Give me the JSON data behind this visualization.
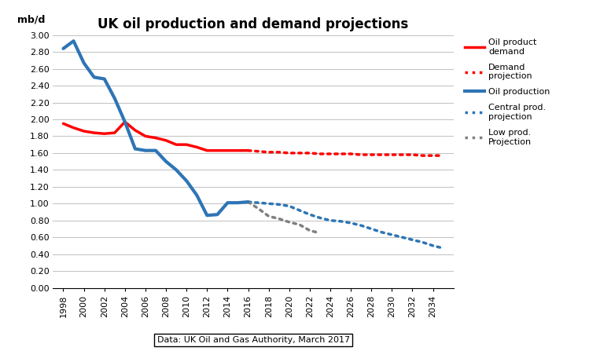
{
  "title": "UK oil production and demand projections",
  "ylabel": "mb/d",
  "source_text": "Data: UK Oil and Gas Authority, March 2017",
  "ylim": [
    0.0,
    3.0
  ],
  "yticks": [
    0.0,
    0.2,
    0.4,
    0.6,
    0.8,
    1.0,
    1.2,
    1.4,
    1.6,
    1.8,
    2.0,
    2.2,
    2.4,
    2.6,
    2.8,
    3.0
  ],
  "oil_demand_years": [
    1998,
    1999,
    2000,
    2001,
    2002,
    2003,
    2004,
    2005,
    2006,
    2007,
    2008,
    2009,
    2010,
    2011,
    2012,
    2013,
    2014,
    2015,
    2016
  ],
  "oil_demand_values": [
    1.95,
    1.9,
    1.86,
    1.84,
    1.83,
    1.84,
    1.97,
    1.87,
    1.8,
    1.78,
    1.75,
    1.7,
    1.7,
    1.67,
    1.63,
    1.63,
    1.63,
    1.63,
    1.63
  ],
  "demand_proj_years": [
    2016,
    2017,
    2018,
    2019,
    2020,
    2021,
    2022,
    2023,
    2024,
    2025,
    2026,
    2027,
    2028,
    2029,
    2030,
    2031,
    2032,
    2033,
    2034,
    2035
  ],
  "demand_proj_values": [
    1.63,
    1.62,
    1.61,
    1.61,
    1.6,
    1.6,
    1.6,
    1.59,
    1.59,
    1.59,
    1.59,
    1.58,
    1.58,
    1.58,
    1.58,
    1.58,
    1.58,
    1.57,
    1.57,
    1.57
  ],
  "oil_prod_years": [
    1998,
    1999,
    2000,
    2001,
    2002,
    2003,
    2004,
    2005,
    2006,
    2007,
    2008,
    2009,
    2010,
    2011,
    2012,
    2013,
    2014,
    2015,
    2016
  ],
  "oil_prod_values": [
    2.84,
    2.93,
    2.67,
    2.5,
    2.48,
    2.25,
    1.97,
    1.65,
    1.63,
    1.63,
    1.5,
    1.4,
    1.27,
    1.1,
    0.86,
    0.87,
    1.01,
    1.01,
    1.02
  ],
  "central_proj_years": [
    2016,
    2017,
    2018,
    2019,
    2020,
    2021,
    2022,
    2023,
    2024,
    2025,
    2026,
    2027,
    2028,
    2029,
    2030,
    2031,
    2032,
    2033,
    2034,
    2035
  ],
  "central_proj_values": [
    1.02,
    1.01,
    1.0,
    0.99,
    0.97,
    0.92,
    0.87,
    0.83,
    0.8,
    0.79,
    0.77,
    0.74,
    0.7,
    0.66,
    0.63,
    0.6,
    0.57,
    0.54,
    0.5,
    0.47
  ],
  "low_proj_years": [
    2016,
    2017,
    2018,
    2019,
    2020,
    2021,
    2022,
    2023
  ],
  "low_proj_values": [
    1.02,
    0.94,
    0.85,
    0.82,
    0.78,
    0.75,
    0.68,
    0.65
  ],
  "color_demand_solid": "#FF0000",
  "color_demand_dotted": "#FF0000",
  "color_prod_solid": "#2E75B6",
  "color_prod_central": "#2E75B6",
  "color_prod_low": "#808080",
  "background_color": "#FFFFFF",
  "grid_color": "#C0C0C0",
  "figsize": [
    7.49,
    4.47
  ],
  "dpi": 100
}
